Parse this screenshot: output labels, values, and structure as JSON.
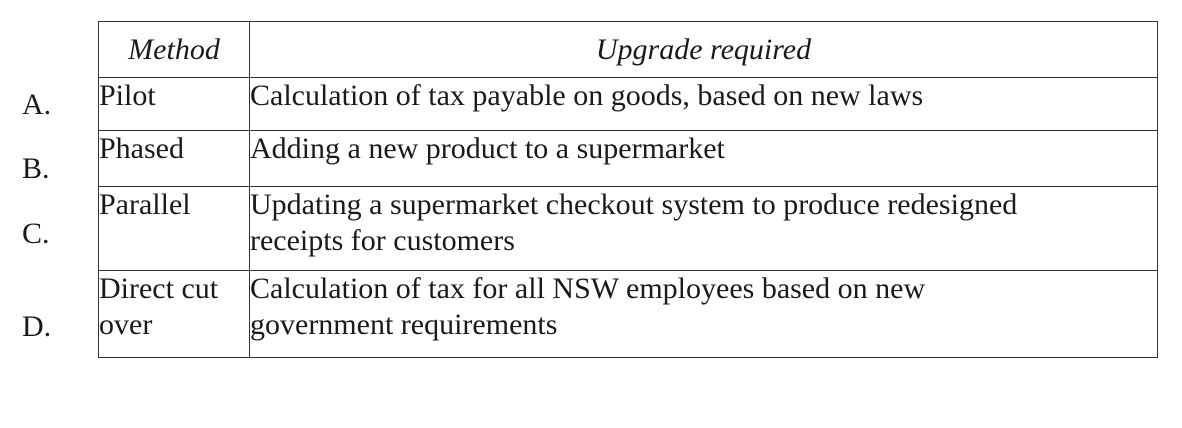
{
  "table": {
    "headers": {
      "method": "Method",
      "upgrade": "Upgrade required"
    },
    "rows": [
      {
        "letter": "A.",
        "method": "Pilot",
        "upgrade": "Calculation of tax payable on goods, based on new laws"
      },
      {
        "letter": "B.",
        "method": "Phased",
        "upgrade": "Adding a new product to a supermarket"
      },
      {
        "letter": "C.",
        "method": "Parallel",
        "upgrade": "Updating a supermarket checkout system to produce redesigned receipts for customers"
      },
      {
        "letter": "D.",
        "method": "Direct cut over",
        "upgrade": "Calculation of tax for all NSW employees based on new government requirements"
      }
    ]
  }
}
